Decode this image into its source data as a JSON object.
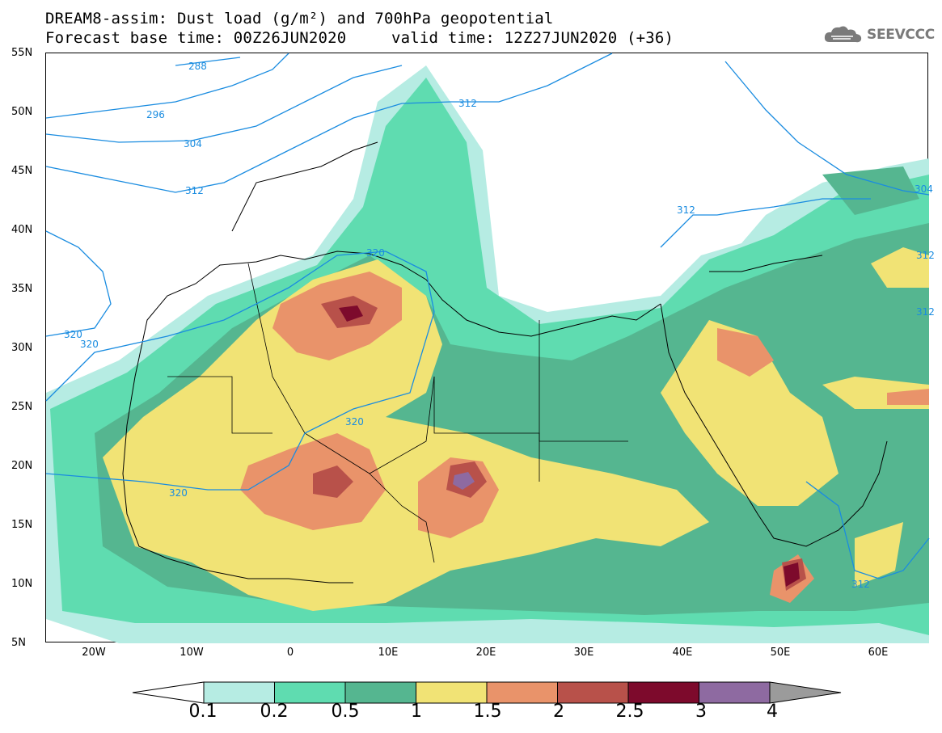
{
  "title_line1": "DREAM8-assim: Dust load (g/m²) and 700hPa geopotential",
  "title_line2_left": "Forecast base time: 00Z26JUN2020",
  "title_line2_right": "valid time: 12Z27JUN2020 (+36)",
  "logo_text": "SEEVCCC",
  "map": {
    "lat_ticks": [
      "55N",
      "50N",
      "45N",
      "40N",
      "35N",
      "30N",
      "25N",
      "20N",
      "15N",
      "10N",
      "5N"
    ],
    "lon_ticks": [
      "20W",
      "10W",
      "0",
      "10E",
      "20E",
      "30E",
      "40E",
      "50E",
      "60E"
    ],
    "contour_labels": [
      "288",
      "296",
      "304",
      "312",
      "320",
      "320",
      "320",
      "320",
      "320",
      "312",
      "312",
      "312",
      "304",
      "312",
      "312"
    ],
    "contour_color": "#1a8ce0"
  },
  "colorbar": {
    "labels": [
      "0.1",
      "0.2",
      "0.5",
      "1",
      "1.5",
      "2",
      "2.5",
      "3",
      "4"
    ],
    "colors": [
      "#b6ece3",
      "#5fdcb0",
      "#55b690",
      "#f1e375",
      "#e9936a",
      "#b8514a",
      "#7d0a2c",
      "#8e6aa1"
    ],
    "under_color": "#ffffff",
    "over_color": "#9b9b9b"
  }
}
